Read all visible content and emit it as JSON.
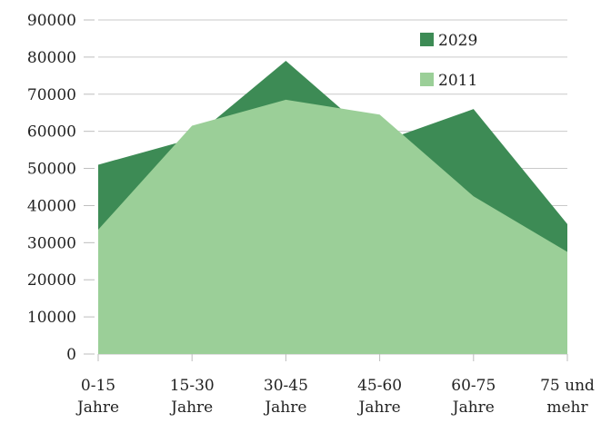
{
  "chart_data": {
    "type": "area",
    "categories": [
      [
        "0-15",
        "Jahre"
      ],
      [
        "15-30",
        "Jahre"
      ],
      [
        "30-45",
        "Jahre"
      ],
      [
        "45-60",
        "Jahre"
      ],
      [
        "60-75",
        "Jahre"
      ],
      [
        "75 und",
        "mehr"
      ]
    ],
    "y_ticks": [
      "90000",
      "80000",
      "70000",
      "60000",
      "50000",
      "40000",
      "30000",
      "20000",
      "10000",
      "0"
    ],
    "ylim": [
      0,
      90000
    ],
    "grid": true,
    "legend_position": "top-right",
    "series": [
      {
        "name": "2029",
        "color": "#3d8b55",
        "values": [
          51000,
          58000,
          79000,
          57000,
          66000,
          35000
        ]
      },
      {
        "name": "2011",
        "color": "#9bcf98",
        "values": [
          33500,
          61500,
          68500,
          64500,
          42500,
          27500
        ]
      }
    ]
  }
}
